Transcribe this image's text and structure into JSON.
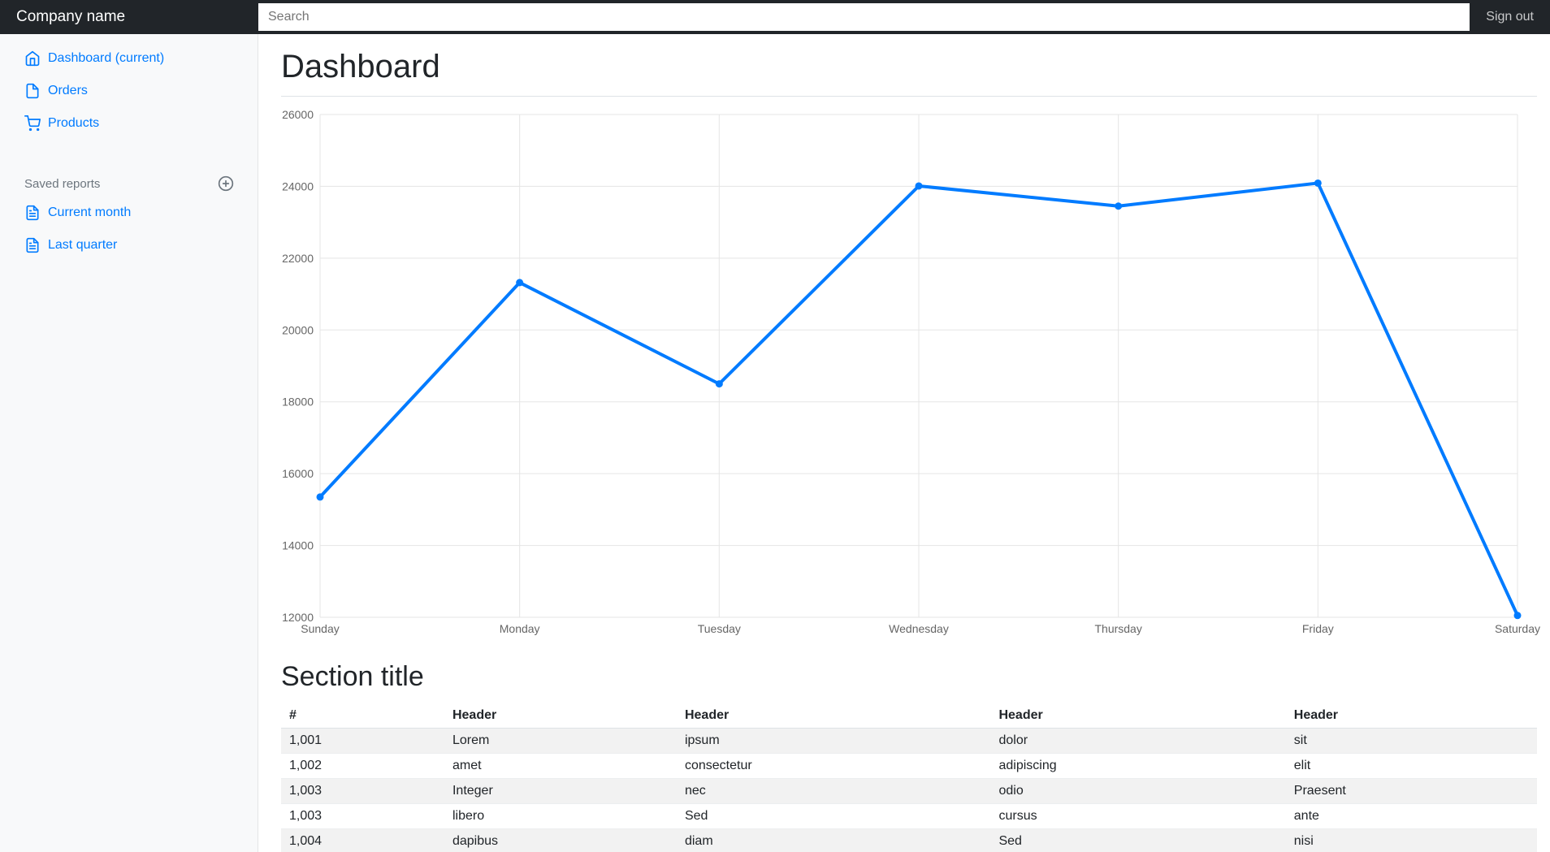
{
  "navbar": {
    "brand": "Company name",
    "search_placeholder": "Search",
    "sign_out": "Sign out"
  },
  "sidebar": {
    "items": [
      {
        "label": "Dashboard (current)",
        "icon": "home-icon"
      },
      {
        "label": "Orders",
        "icon": "file-icon"
      },
      {
        "label": "Products",
        "icon": "cart-icon"
      }
    ],
    "saved_reports": {
      "label": "Saved reports",
      "items": [
        {
          "label": "Current month",
          "icon": "file-text-icon"
        },
        {
          "label": "Last quarter",
          "icon": "file-text-icon"
        }
      ]
    }
  },
  "main": {
    "title": "Dashboard",
    "section_title": "Section title"
  },
  "chart_data": {
    "type": "line",
    "categories": [
      "Sunday",
      "Monday",
      "Tuesday",
      "Wednesday",
      "Thursday",
      "Friday",
      "Saturday"
    ],
    "values": [
      15350,
      21320,
      18500,
      24010,
      23450,
      24090,
      12050
    ],
    "title": "",
    "xlabel": "",
    "ylabel": "",
    "ylim": [
      12000,
      26000
    ],
    "ytick_step": 2000,
    "grid": true,
    "legend": "none",
    "line_color": "#007bff",
    "grid_color": "#e5e5e5",
    "tick_label_color": "#666666"
  },
  "table": {
    "headers": [
      "#",
      "Header",
      "Header",
      "Header",
      "Header"
    ],
    "rows": [
      [
        "1,001",
        "Lorem",
        "ipsum",
        "dolor",
        "sit"
      ],
      [
        "1,002",
        "amet",
        "consectetur",
        "adipiscing",
        "elit"
      ],
      [
        "1,003",
        "Integer",
        "nec",
        "odio",
        "Praesent"
      ],
      [
        "1,003",
        "libero",
        "Sed",
        "cursus",
        "ante"
      ],
      [
        "1,004",
        "dapibus",
        "diam",
        "Sed",
        "nisi"
      ]
    ]
  },
  "colors": {
    "accent": "#007bff",
    "navbar_bg": "#212529",
    "sidebar_bg": "#f8f9fa",
    "muted_text": "#6c757d",
    "border": "#dee2e6"
  }
}
